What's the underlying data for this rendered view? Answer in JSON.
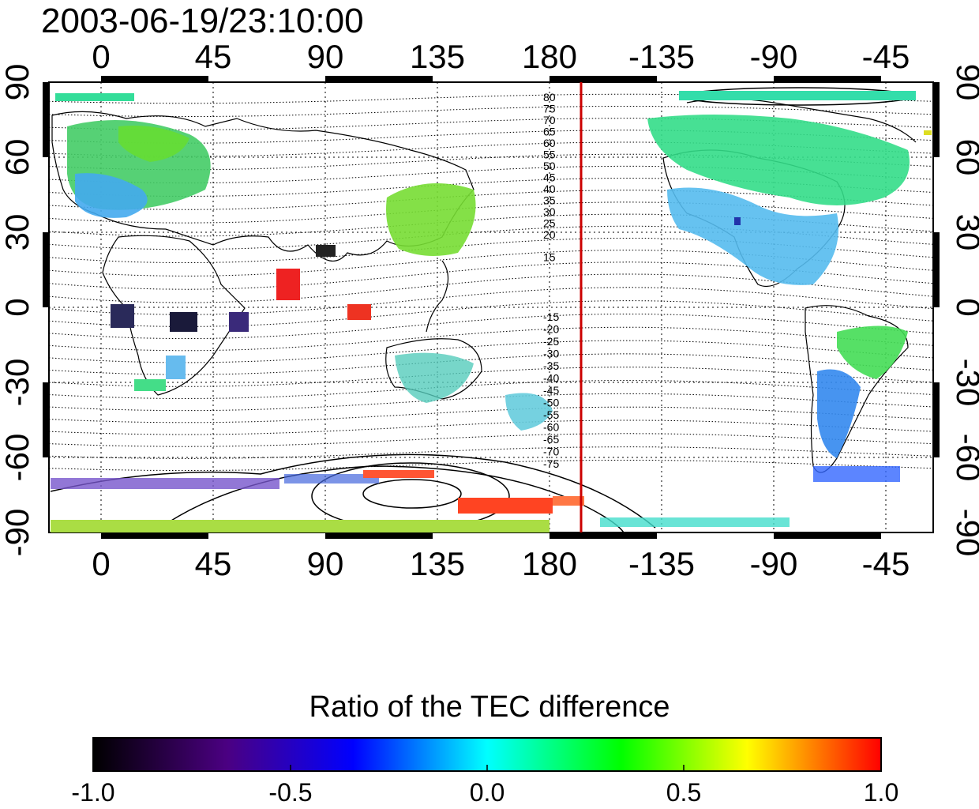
{
  "timestamp": "2003-06-19/23:10:00",
  "map": {
    "top_lon_labels": [
      "0",
      "45",
      "90",
      "135",
      "180",
      "-135",
      "-90",
      "-45"
    ],
    "bottom_lon_labels": [
      "0",
      "45",
      "90",
      "135",
      "180",
      "-135",
      "-90",
      "-45"
    ],
    "left_lat_labels": [
      "90",
      "60",
      "30",
      "0",
      "-30",
      "-60",
      "-90"
    ],
    "right_lat_labels": [
      "90",
      "60",
      "30",
      "0",
      "-30",
      "-60",
      "-90"
    ],
    "terminator_line_color": "#cc0000",
    "contour_labels_north": [
      "80",
      "75",
      "70",
      "65",
      "60",
      "55",
      "50",
      "45",
      "40",
      "35",
      "30",
      "25",
      "20",
      "15"
    ],
    "contour_labels_south": [
      "-15",
      "-20",
      "-25",
      "-30",
      "-35",
      "-40",
      "-45",
      "-50",
      "-55",
      "-60",
      "-65",
      "-70",
      "-75"
    ]
  },
  "colorbar": {
    "title": "Ratio of the TEC difference",
    "tick_labels": [
      "-1.0",
      "-0.5",
      "0.0",
      "0.5",
      "1.0"
    ],
    "colors": [
      "#000000",
      "#4b0082",
      "#0000ff",
      "#00ffff",
      "#00ff00",
      "#ffff00",
      "#ff0000"
    ]
  }
}
